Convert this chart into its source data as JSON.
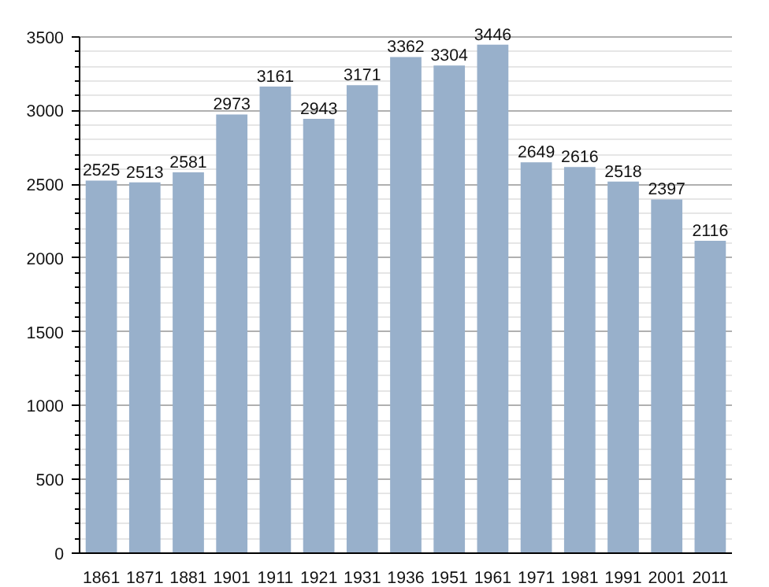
{
  "chart_data": {
    "type": "bar",
    "categories": [
      "1861",
      "1871",
      "1881",
      "1901",
      "1911",
      "1921",
      "1931",
      "1936",
      "1951",
      "1961",
      "1971",
      "1981",
      "1991",
      "2001",
      "2011"
    ],
    "values": [
      2525,
      2513,
      2581,
      2973,
      3161,
      2943,
      3171,
      3362,
      3304,
      3446,
      2649,
      2616,
      2518,
      2397,
      2116
    ],
    "color": "#98b0cb",
    "ylim": [
      0,
      3500
    ],
    "yticks": [
      0,
      500,
      1000,
      1500,
      2000,
      2500,
      3000,
      3500
    ],
    "grid": "y",
    "data_labels": true
  }
}
